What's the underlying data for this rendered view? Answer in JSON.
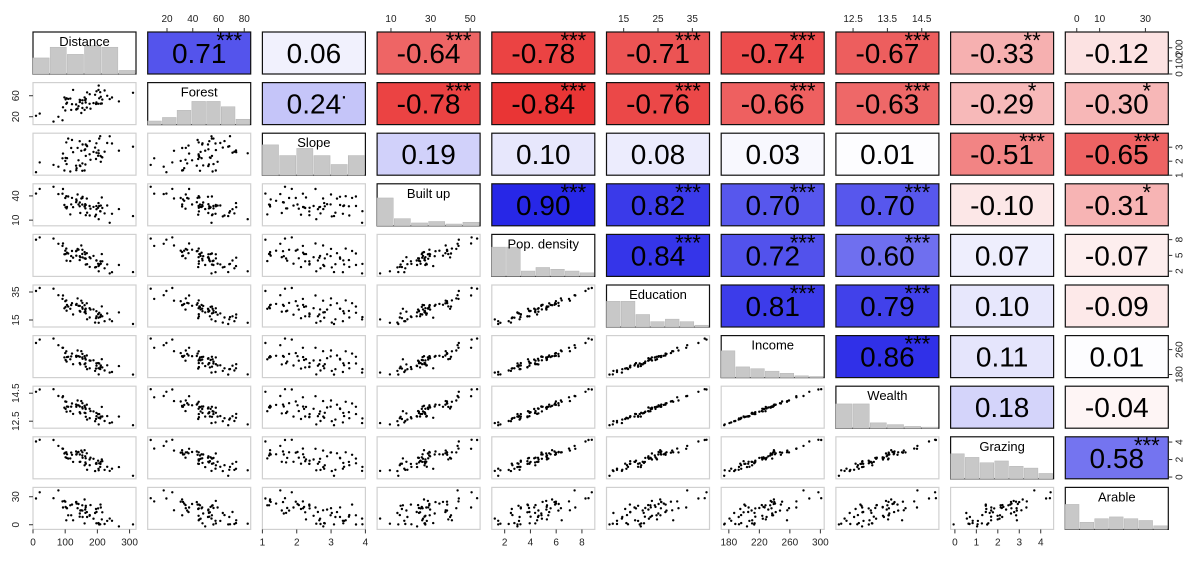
{
  "chart_data": {
    "type": "scatter-matrix",
    "variables": [
      "Distance",
      "Forest",
      "Slope",
      "Built up",
      "Pop. density",
      "Education",
      "Income",
      "Wealth",
      "Grazing",
      "Arable"
    ],
    "correlations": [
      [
        null,
        0.71,
        0.06,
        -0.64,
        -0.78,
        -0.71,
        -0.74,
        -0.67,
        -0.33,
        -0.12
      ],
      [
        null,
        null,
        0.24,
        -0.78,
        -0.84,
        -0.76,
        -0.66,
        -0.63,
        -0.29,
        -0.3
      ],
      [
        null,
        null,
        null,
        0.19,
        0.1,
        0.08,
        0.03,
        0.01,
        -0.51,
        -0.65
      ],
      [
        null,
        null,
        null,
        null,
        0.9,
        0.82,
        0.7,
        0.7,
        -0.1,
        -0.31
      ],
      [
        null,
        null,
        null,
        null,
        null,
        0.84,
        0.72,
        0.6,
        0.07,
        -0.07
      ],
      [
        null,
        null,
        null,
        null,
        null,
        null,
        0.81,
        0.79,
        0.1,
        -0.09
      ],
      [
        null,
        null,
        null,
        null,
        null,
        null,
        null,
        0.86,
        0.11,
        0.01
      ],
      [
        null,
        null,
        null,
        null,
        null,
        null,
        null,
        null,
        0.18,
        -0.04
      ],
      [
        null,
        null,
        null,
        null,
        null,
        null,
        null,
        null,
        null,
        0.58
      ],
      [
        null,
        null,
        null,
        null,
        null,
        null,
        null,
        null,
        null,
        null
      ]
    ],
    "correlation_labels": [
      [
        null,
        "0.71",
        "0.06",
        "-0.64",
        "-0.78",
        "-0.71",
        "-0.74",
        "-0.67",
        "-0.33",
        "-0.12"
      ],
      [
        null,
        null,
        "0.24",
        "-0.78",
        "-0.84",
        "-0.76",
        "-0.66",
        "-0.63",
        "-0.29",
        "-0.30"
      ],
      [
        null,
        null,
        null,
        "0.19",
        "0.10",
        "0.08",
        "0.03",
        "0.01",
        "-0.51",
        "-0.65"
      ],
      [
        null,
        null,
        null,
        null,
        "0.90",
        "0.82",
        "0.70",
        "0.70",
        "-0.10",
        "-0.31"
      ],
      [
        null,
        null,
        null,
        null,
        null,
        "0.84",
        "0.72",
        "0.60",
        "0.07",
        "-0.07"
      ],
      [
        null,
        null,
        null,
        null,
        null,
        null,
        "0.81",
        "0.79",
        "0.10",
        "-0.09"
      ],
      [
        null,
        null,
        null,
        null,
        null,
        null,
        null,
        "0.86",
        "0.11",
        "0.01"
      ],
      [
        null,
        null,
        null,
        null,
        null,
        null,
        null,
        null,
        "0.18",
        "-0.04"
      ],
      [
        null,
        null,
        null,
        null,
        null,
        null,
        null,
        null,
        null,
        "0.58"
      ],
      [
        null,
        null,
        null,
        null,
        null,
        null,
        null,
        null,
        null,
        null
      ]
    ],
    "significance": [
      [
        null,
        "***",
        "",
        "***",
        "***",
        "***",
        "***",
        "***",
        "**",
        ""
      ],
      [
        null,
        null,
        ".",
        "***",
        "***",
        "***",
        "***",
        "***",
        "*",
        "*"
      ],
      [
        null,
        null,
        null,
        "",
        "",
        "",
        "",
        "",
        "***",
        "***"
      ],
      [
        null,
        null,
        null,
        null,
        "***",
        "***",
        "***",
        "***",
        "",
        "*"
      ],
      [
        null,
        null,
        null,
        null,
        null,
        "***",
        "***",
        "***",
        "",
        ""
      ],
      [
        null,
        null,
        null,
        null,
        null,
        null,
        "***",
        "***",
        "",
        ""
      ],
      [
        null,
        null,
        null,
        null,
        null,
        null,
        null,
        "***",
        "",
        ""
      ],
      [
        null,
        null,
        null,
        null,
        null,
        null,
        null,
        null,
        "",
        ""
      ],
      [
        null,
        null,
        null,
        null,
        null,
        null,
        null,
        null,
        null,
        "***"
      ],
      [
        null,
        null,
        null,
        null,
        null,
        null,
        null,
        null,
        null,
        null
      ]
    ],
    "ranges": [
      [
        0,
        320
      ],
      [
        5,
        85
      ],
      [
        1,
        4
      ],
      [
        3,
        55
      ],
      [
        1,
        9
      ],
      [
        10,
        40
      ],
      [
        170,
        305
      ],
      [
        12,
        15
      ],
      [
        -0.2,
        4.6
      ],
      [
        -5,
        40
      ]
    ],
    "histograms": [
      [
        0.45,
        0.75,
        0.55,
        0.8,
        0.75,
        0.1
      ],
      [
        0.1,
        0.2,
        0.4,
        0.65,
        0.65,
        0.5,
        0.15
      ],
      [
        0.85,
        0.55,
        0.75,
        0.55,
        0.3,
        0.55
      ],
      [
        0.78,
        0.2,
        0.08,
        0.12,
        0.05,
        0.1
      ],
      [
        0.82,
        0.82,
        0.15,
        0.25,
        0.2,
        0.15,
        0.1
      ],
      [
        0.72,
        0.72,
        0.35,
        0.15,
        0.22,
        0.15,
        0.05
      ],
      [
        0.75,
        0.3,
        0.25,
        0.18,
        0.12,
        0.05,
        0.03
      ],
      [
        0.68,
        0.68,
        0.15,
        0.1,
        0.05,
        0.03
      ],
      [
        0.7,
        0.6,
        0.45,
        0.5,
        0.35,
        0.3,
        0.15
      ],
      [
        0.7,
        0.2,
        0.3,
        0.35,
        0.3,
        0.25,
        0.1
      ]
    ],
    "top_axes": [
      {
        "col": 1,
        "ticks": [
          20,
          40,
          60,
          80
        ]
      },
      {
        "col": 3,
        "ticks": [
          10,
          30,
          50
        ]
      },
      {
        "col": 5,
        "ticks": [
          15,
          25,
          35
        ]
      },
      {
        "col": 7,
        "ticks": [
          12.5,
          13.5,
          14.5
        ]
      },
      {
        "col": 9,
        "ticks": [
          0,
          10,
          30
        ]
      }
    ],
    "bottom_axes": [
      {
        "col": 0,
        "ticks": [
          0,
          100,
          200,
          300
        ]
      },
      {
        "col": 2,
        "ticks": [
          1.0,
          2.0,
          3.0,
          4.0
        ]
      },
      {
        "col": 4,
        "ticks": [
          2,
          4,
          6,
          8
        ]
      },
      {
        "col": 6,
        "ticks": [
          180,
          220,
          260,
          300
        ]
      },
      {
        "col": 8,
        "ticks": [
          0,
          1,
          2,
          3,
          4
        ]
      }
    ],
    "left_axes": [
      {
        "row": 1,
        "ticks": [
          20,
          60
        ]
      },
      {
        "row": 3,
        "ticks": [
          10,
          40
        ]
      },
      {
        "row": 5,
        "ticks": [
          15,
          35
        ]
      },
      {
        "row": 7,
        "ticks": [
          12.5,
          14.5
        ]
      },
      {
        "row": 9,
        "ticks": [
          0,
          30
        ]
      }
    ],
    "right_axes": [
      {
        "row": 0,
        "ticks": [
          0,
          100,
          200
        ]
      },
      {
        "row": 2,
        "ticks": [
          1.0,
          2.0,
          3.0
        ]
      },
      {
        "row": 4,
        "ticks": [
          2,
          5,
          8
        ]
      },
      {
        "row": 6,
        "ticks": [
          180,
          260
        ]
      },
      {
        "row": 8,
        "ticks": [
          0,
          2,
          4
        ]
      }
    ],
    "colors": {
      "positive": "#1a1ae6",
      "negative": "#e61a1a",
      "neutral": "#ffffff",
      "histogram_fill": "#c8c8c8",
      "panel_border": "#d0d0d0",
      "point": "#000000"
    }
  }
}
